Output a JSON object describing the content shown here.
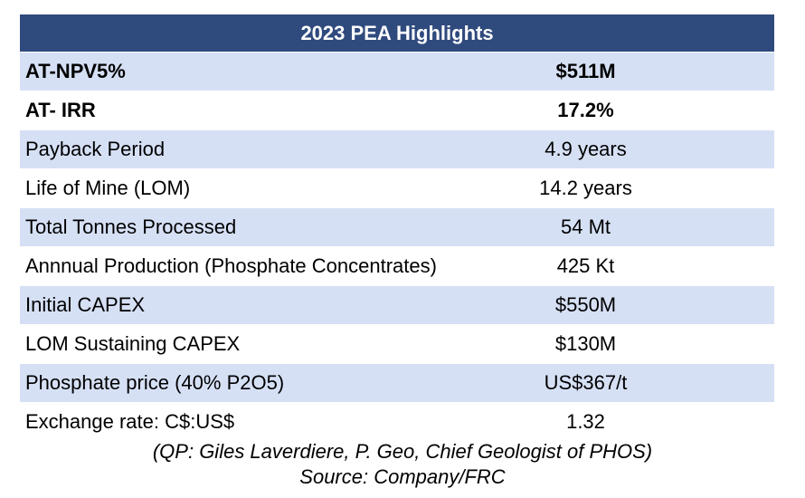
{
  "table": {
    "title": "2023 PEA Highlights",
    "rows": [
      {
        "label": "AT-NPV5%",
        "value": "$511M"
      },
      {
        "label": "AT- IRR",
        "value": "17.2%"
      },
      {
        "label": "Payback Period",
        "value": "4.9 years"
      },
      {
        "label": "Life of Mine (LOM)",
        "value": "14.2 years"
      },
      {
        "label": "Total Tonnes Processed",
        "value": "54 Mt"
      },
      {
        "label": "Annnual Production (Phosphate Concentrates)",
        "value": "425 Kt"
      },
      {
        "label": "Initial CAPEX",
        "value": "$550M"
      },
      {
        "label": "LOM Sustaining CAPEX",
        "value": "$130M"
      },
      {
        "label": "Phosphate price (40% P2O5)",
        "value": "US$367/t"
      },
      {
        "label": "Exchange rate: C$:US$",
        "value": "1.32"
      }
    ],
    "colors": {
      "header_bg": "#2f4a7d",
      "row_shade": "#d6e0f5"
    }
  },
  "footnotes": {
    "qp": "(QP: Giles Laverdiere, P. Geo, Chief Geologist of PHOS)",
    "source": "Source: Company/FRC"
  }
}
